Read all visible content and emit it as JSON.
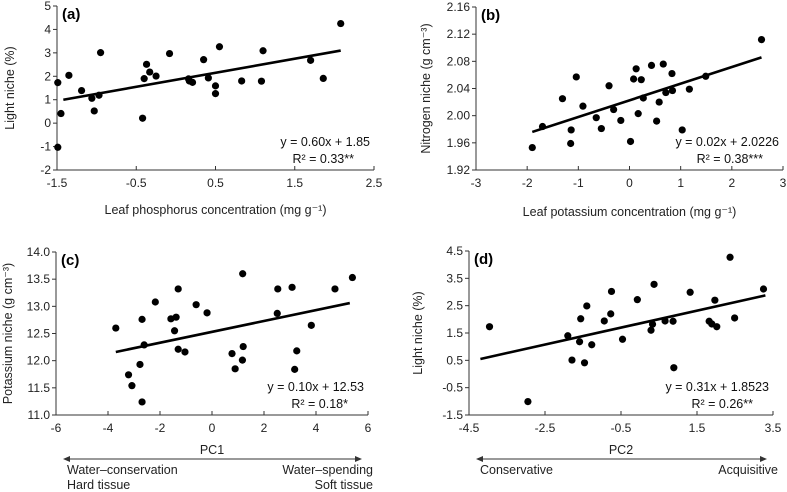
{
  "chart_data": [
    {
      "type": "scatter",
      "panel": "(a)",
      "xlabel": "Leaf phosphorus concentration (mg g⁻¹)",
      "ylabel": "Light niche (%)",
      "xlim": [
        -1.5,
        2.5
      ],
      "xticks": [
        -1.5,
        -0.5,
        0.5,
        1.5,
        2.5
      ],
      "xtick_labels": [
        "-1.5",
        "-0.5",
        "0.5",
        "1.5",
        "2.5"
      ],
      "ylim": [
        -2,
        5
      ],
      "yticks": [
        -2,
        -1,
        0,
        1,
        2,
        3,
        4,
        5
      ],
      "ytick_labels": [
        "-2",
        "-1",
        "0",
        "1",
        "2",
        "3",
        "4",
        "5"
      ],
      "equation": "y = 0.60x + 1.85",
      "r2": "R² = 0.33**",
      "fit": {
        "slope": 0.6,
        "intercept": 1.85,
        "x_range": [
          -1.42,
          2.08
        ]
      },
      "x": [
        -1.49,
        -1.45,
        -1.35,
        -1.49,
        -1.19,
        -1.06,
        -1.03,
        -0.97,
        -0.95,
        -0.42,
        -0.4,
        -0.37,
        -0.33,
        -0.25,
        -0.08,
        0.16,
        0.17,
        0.21,
        0.35,
        0.41,
        0.5,
        0.5,
        0.55,
        0.83,
        1.08,
        1.1,
        1.7,
        1.86,
        2.08
      ],
      "y": [
        1.73,
        0.41,
        2.04,
        -1.03,
        1.39,
        1.06,
        0.52,
        1.19,
        3.01,
        0.21,
        1.9,
        2.51,
        2.18,
        2.01,
        2.97,
        1.89,
        1.8,
        1.74,
        2.71,
        1.93,
        1.59,
        1.26,
        3.26,
        1.8,
        1.79,
        3.09,
        2.68,
        1.91,
        4.25
      ]
    },
    {
      "type": "scatter",
      "panel": "(b)",
      "xlabel": "Leaf potassium concentration (mg g⁻¹)",
      "ylabel": "Nitrogen niche (g cm⁻³)",
      "xlim": [
        -3,
        3
      ],
      "xticks": [
        -3,
        -2,
        -1,
        0,
        1,
        2,
        3
      ],
      "xtick_labels": [
        "-3",
        "-2",
        "-1",
        "0",
        "1",
        "2",
        "3"
      ],
      "ylim": [
        1.92,
        2.16
      ],
      "yticks": [
        1.92,
        1.96,
        2.0,
        2.04,
        2.08,
        2.12,
        2.16
      ],
      "ytick_labels": [
        "1.92",
        "1.96",
        "2.00",
        "2.04",
        "2.08",
        "2.12",
        "2.16"
      ],
      "equation": "y = 0.02x + 2.0226",
      "r2": "R² = 0.38***",
      "fit": {
        "slope": 0.0245,
        "intercept": 2.0226,
        "x_range": [
          -1.9,
          2.58
        ]
      },
      "x": [
        -1.9,
        -1.7,
        -1.31,
        -1.04,
        -1.14,
        -1.15,
        -0.91,
        -0.4,
        -0.31,
        -0.65,
        -0.55,
        -0.17,
        0.02,
        0.08,
        0.13,
        0.17,
        0.23,
        0.27,
        0.43,
        0.53,
        0.58,
        0.66,
        0.71,
        0.83,
        0.84,
        1.03,
        1.17,
        1.49,
        2.58
      ],
      "y": [
        1.953,
        1.984,
        2.025,
        2.057,
        1.979,
        1.959,
        2.014,
        2.044,
        2.009,
        1.997,
        1.981,
        1.993,
        1.962,
        2.054,
        2.069,
        2.003,
        2.053,
        2.026,
        2.074,
        1.992,
        2.02,
        2.076,
        2.034,
        2.062,
        2.037,
        1.979,
        2.039,
        2.058,
        2.112
      ]
    },
    {
      "type": "scatter",
      "panel": "(c)",
      "xlabel": "PC1",
      "ylabel": "Potassium niche (g cm⁻³)",
      "xlim": [
        -6,
        6
      ],
      "xticks": [
        -6,
        -4,
        -2,
        0,
        2,
        4,
        6
      ],
      "xtick_labels": [
        "-6",
        "-4",
        "-2",
        "0",
        "2",
        "4",
        "6"
      ],
      "ylim": [
        11.0,
        14.0
      ],
      "yticks": [
        11,
        11.5,
        12,
        12.5,
        13,
        13.5,
        14
      ],
      "ytick_labels": [
        "11.0",
        "11.5",
        "12.0",
        "12.5",
        "13.0",
        "13.5",
        "14.0"
      ],
      "equation": "y = 0.10x + 12.53",
      "r2": "R² = 0.18*",
      "fit": {
        "slope": 0.1,
        "intercept": 12.53,
        "x_range": [
          -3.7,
          5.3
        ]
      },
      "axis_annotation": {
        "left": [
          "Water–conservation",
          "Hard tissue"
        ],
        "right": [
          "Water–spending",
          "Soft tissue"
        ]
      },
      "x": [
        -3.7,
        -3.21,
        -3.08,
        -2.69,
        -2.77,
        -2.69,
        -2.61,
        -2.18,
        -1.58,
        -1.44,
        -1.38,
        -1.3,
        -1.3,
        -1.04,
        -0.61,
        -0.19,
        0.77,
        0.89,
        1.17,
        1.2,
        1.18,
        2.53,
        2.51,
        3.08,
        3.18,
        3.26,
        3.82,
        4.73,
        5.4
      ],
      "y": [
        12.6,
        11.74,
        11.54,
        11.24,
        11.93,
        12.76,
        12.29,
        13.08,
        12.77,
        12.55,
        12.8,
        13.32,
        12.21,
        12.16,
        13.03,
        12.88,
        12.13,
        11.85,
        12.01,
        12.26,
        13.6,
        13.32,
        12.87,
        13.35,
        11.84,
        12.18,
        12.65,
        13.32,
        13.53
      ]
    },
    {
      "type": "scatter",
      "panel": "(d)",
      "xlabel": "PC2",
      "ylabel": "Light  niche (%)",
      "xlim": [
        -4.5,
        3.5
      ],
      "xticks": [
        -4.5,
        -2.5,
        -0.5,
        1.5,
        3.5
      ],
      "xtick_labels": [
        "-4.5",
        "-2.5",
        "-0.5",
        "1.5",
        "3.5"
      ],
      "ylim": [
        -1.5,
        4.5
      ],
      "yticks": [
        -1.5,
        -0.5,
        0.5,
        1.5,
        2.5,
        3.5,
        4.5
      ],
      "ytick_labels": [
        "-1.5",
        "-0.5",
        "0.5",
        "1.5",
        "2.5",
        "3.5",
        "4.5"
      ],
      "equation": "y = 0.31x + 1.8523",
      "r2": "R² = 0.26**",
      "fit": {
        "slope": 0.31,
        "intercept": 1.8523,
        "x_range": [
          -4.2,
          3.3
        ]
      },
      "axis_annotation": {
        "left": [
          "Conservative"
        ],
        "right": [
          "Acquisitive"
        ]
      },
      "x": [
        -3.96,
        -2.95,
        -1.9,
        -1.79,
        -1.59,
        -1.56,
        -1.46,
        -1.4,
        -1.27,
        -0.94,
        -0.77,
        -0.75,
        -0.46,
        -0.07,
        0.29,
        0.33,
        0.37,
        0.66,
        0.87,
        0.89,
        1.32,
        1.82,
        1.89,
        1.97,
        2.02,
        2.37,
        2.49,
        3.25
      ],
      "y": [
        1.73,
        -1.01,
        1.4,
        0.51,
        1.18,
        2.02,
        0.41,
        2.49,
        1.07,
        1.94,
        2.2,
        3.02,
        1.27,
        2.72,
        1.6,
        1.82,
        3.28,
        1.94,
        1.93,
        0.23,
        2.99,
        1.93,
        1.83,
        2.7,
        1.73,
        4.27,
        2.05,
        3.11
      ]
    }
  ]
}
